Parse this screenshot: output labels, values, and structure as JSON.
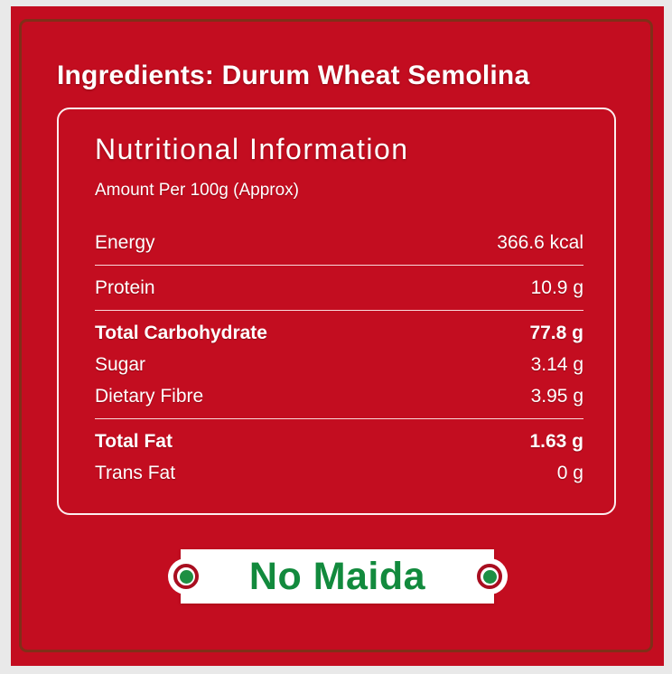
{
  "colors": {
    "page_background": "#e9e9e9",
    "label_red": "#c30d20",
    "frame_brown": "#6d3a16",
    "text_white": "#ffffff",
    "banner_green": "#128a3d",
    "badge_ring_red": "#a80e20",
    "badge_dot_green": "#1d8f43"
  },
  "ingredients_heading": "Ingredients: Durum Wheat Semolina",
  "nutrition_panel": {
    "title": "Nutritional Information",
    "subtitle": "Amount Per 100g (Approx)",
    "groups": [
      {
        "rows": [
          {
            "name": "Energy",
            "value": "366.6 kcal",
            "bold": false
          }
        ]
      },
      {
        "rows": [
          {
            "name": "Protein",
            "value": "10.9 g",
            "bold": false
          }
        ]
      },
      {
        "rows": [
          {
            "name": "Total Carbohydrate",
            "value": "77.8 g",
            "bold": true
          },
          {
            "name": "Sugar",
            "value": "3.14 g",
            "bold": false
          },
          {
            "name": "Dietary Fibre",
            "value": "3.95 g",
            "bold": false
          }
        ]
      },
      {
        "rows": [
          {
            "name": "Total Fat",
            "value": "1.63 g",
            "bold": true
          },
          {
            "name": "Trans Fat",
            "value": "0 g",
            "bold": false
          }
        ]
      }
    ]
  },
  "banner": {
    "text": "No Maida",
    "badge_icon": "veg-dot-icon"
  }
}
